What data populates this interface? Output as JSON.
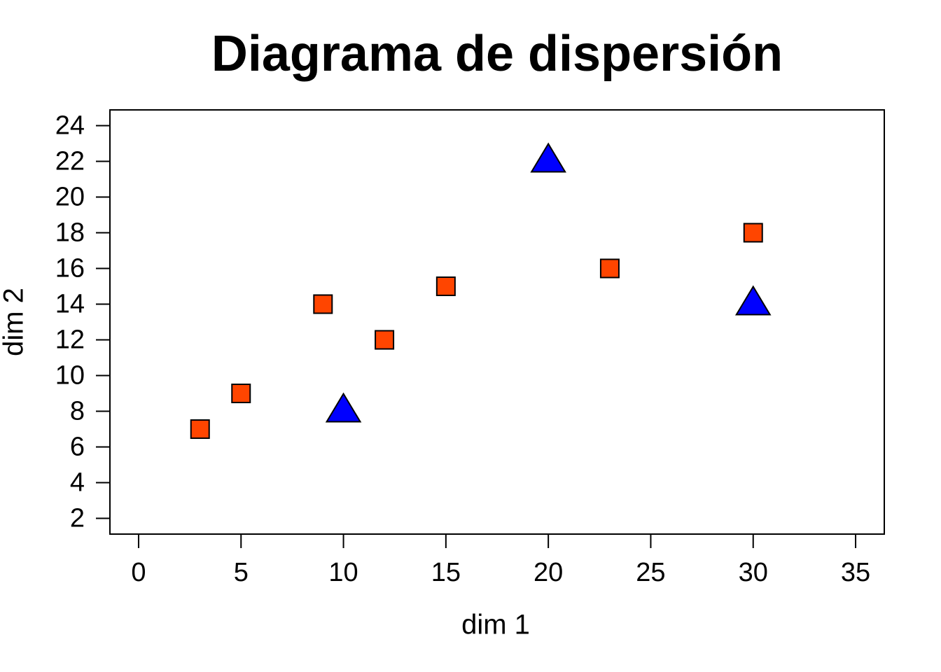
{
  "chart_data": {
    "type": "scatter",
    "title": "Diagrama de dispersión",
    "x_label": "dim 1",
    "y_label": "dim 2",
    "xlim": [
      -1.4,
      36.4
    ],
    "xticks": [
      0,
      5,
      10,
      15,
      20,
      25,
      30,
      35
    ],
    "ylim": [
      1.12,
      24.88
    ],
    "yticks": [
      2,
      4,
      6,
      8,
      10,
      12,
      14,
      16,
      18,
      20,
      22,
      24
    ],
    "series": [
      {
        "color": "#ff4500",
        "marker": "square",
        "x": [
          3,
          5,
          9,
          12,
          15,
          23,
          30
        ],
        "values": [
          7,
          9,
          14,
          12,
          15,
          16,
          18
        ]
      },
      {
        "color": "#0000ff",
        "marker": "triangle",
        "x": [
          10,
          20,
          30
        ],
        "values": [
          8,
          22,
          14
        ]
      }
    ]
  }
}
